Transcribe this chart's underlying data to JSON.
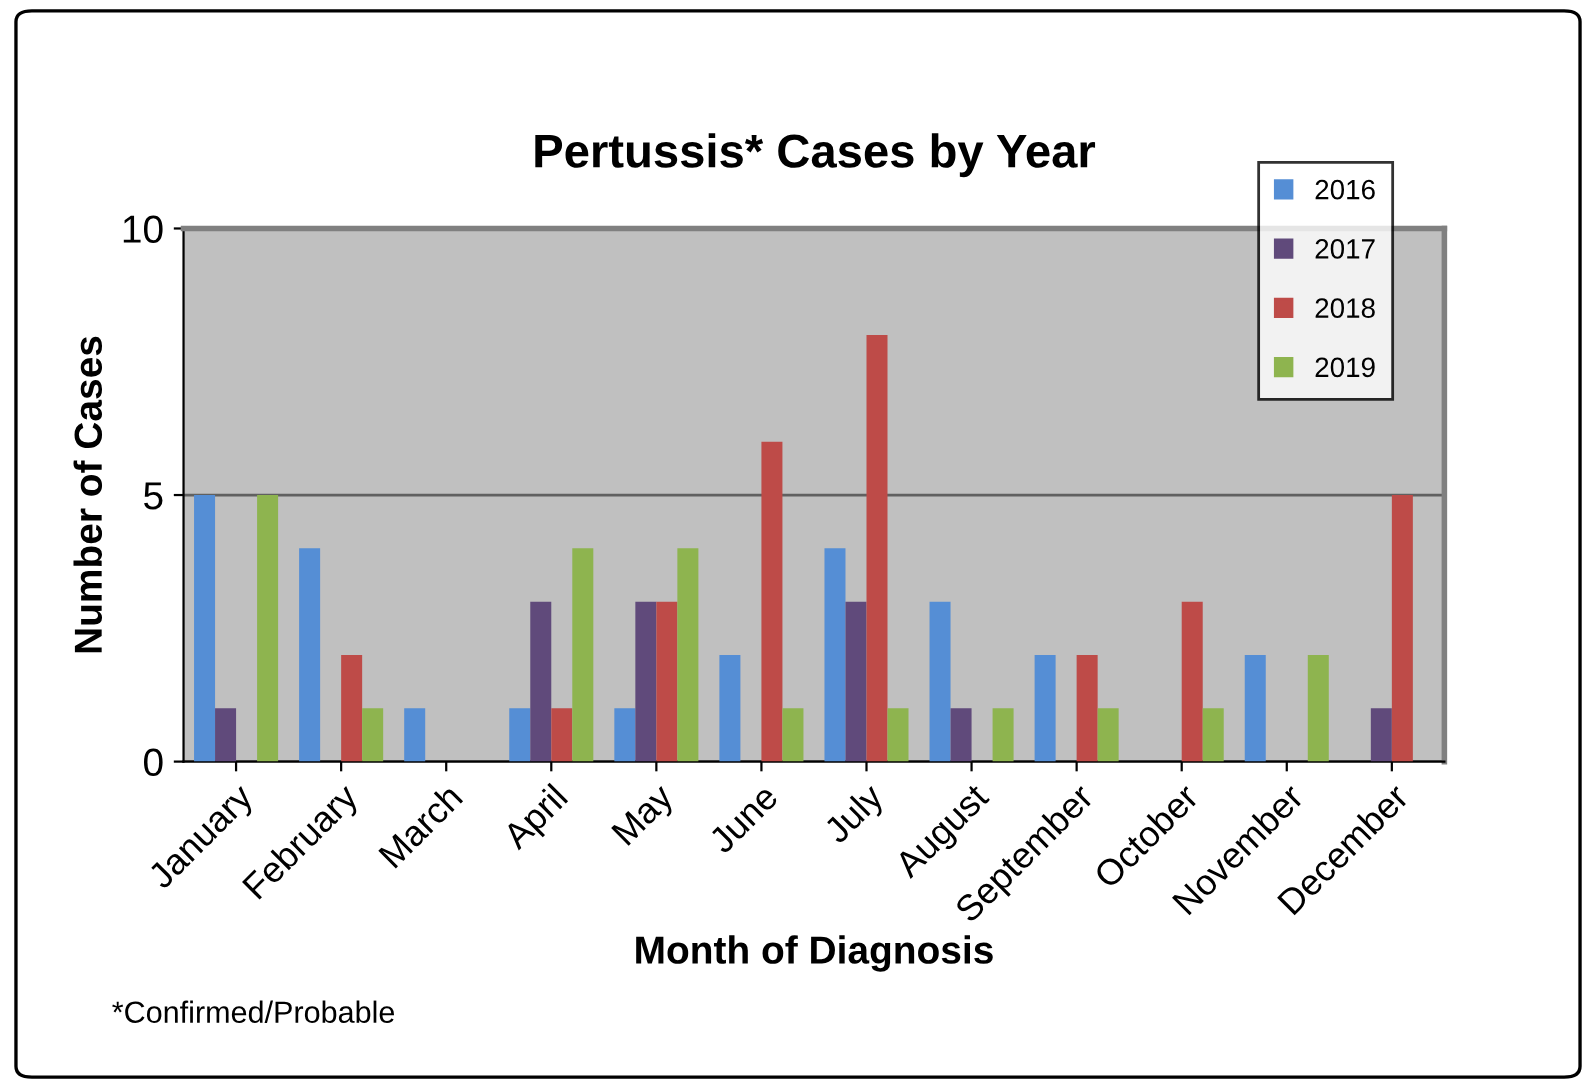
{
  "chart_data": {
    "type": "bar",
    "title": "Pertussis* Cases by Year",
    "xlabel": "Month of Diagnosis",
    "ylabel": "Number of Cases",
    "categories": [
      "January",
      "February",
      "March",
      "April",
      "May",
      "June",
      "July",
      "August",
      "September",
      "October",
      "November",
      "December"
    ],
    "series": [
      {
        "name": "2016",
        "color": "#558ed5",
        "values": [
          5,
          4,
          1,
          1,
          1,
          2,
          4,
          3,
          2,
          0,
          2,
          0
        ]
      },
      {
        "name": "2017",
        "color": "#604a7b",
        "values": [
          1,
          0,
          0,
          3,
          3,
          0,
          3,
          1,
          0,
          0,
          0,
          1
        ]
      },
      {
        "name": "2018",
        "color": "#be4b48",
        "values": [
          0,
          2,
          0,
          1,
          3,
          6,
          8,
          0,
          2,
          3,
          0,
          5
        ]
      },
      {
        "name": "2019",
        "color": "#8eb44f",
        "values": [
          5,
          1,
          0,
          4,
          4,
          1,
          1,
          1,
          1,
          1,
          2,
          0
        ]
      }
    ],
    "ylim": [
      0,
      10
    ],
    "yticks": [
      0,
      5,
      10
    ],
    "grid": "y",
    "legend": "top right",
    "annotations": [
      "*Confirmed/Probable"
    ]
  }
}
